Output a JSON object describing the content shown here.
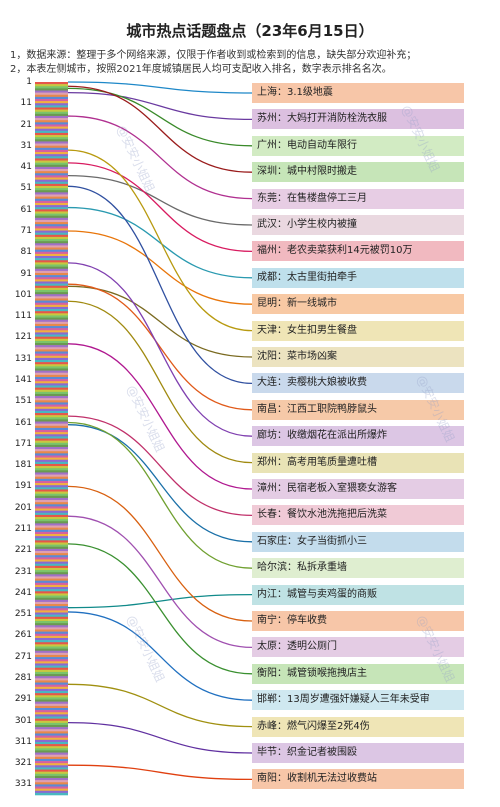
{
  "title": "城市热点话题盘点（23年6月15日）",
  "notes": [
    "1，数据来源：整理于多个网络来源，仅限于作者收到或检索到的信息，缺失部分欢迎补充；",
    "2，本表左侧城市，按照2021年度城镇居民人均可支配收入排名，数字表示排名名次。"
  ],
  "watermark": "@安安小姐姐",
  "ranks": [
    "1",
    "11",
    "21",
    "31",
    "41",
    "51",
    "61",
    "71",
    "81",
    "91",
    "101",
    "111",
    "121",
    "131",
    "141",
    "151",
    "161",
    "171",
    "181",
    "191",
    "201",
    "211",
    "221",
    "231",
    "241",
    "251",
    "261",
    "271",
    "281",
    "291",
    "301",
    "311",
    "321",
    "331"
  ],
  "chart_data": {
    "type": "table",
    "topics": [
      {
        "label": "上海：3.1级地震",
        "rank": 1,
        "color": "#f7c6a8",
        "line": "#1e88c8"
      },
      {
        "label": "苏州：大妈打开消防栓洗衣服",
        "rank": 6,
        "color": "#dcc0e0",
        "line": "#6a3aa0"
      },
      {
        "label": "广州：电动自动车限行",
        "rank": 4,
        "color": "#d2ebc3",
        "line": "#3a8a2a"
      },
      {
        "label": "深圳：城中村限时搬走",
        "rank": 3,
        "color": "#c6e5b8",
        "line": "#9a1c1c"
      },
      {
        "label": "东莞：在售楼盘停工三月",
        "rank": 17,
        "color": "#e7cde4",
        "line": "#b03090"
      },
      {
        "label": "武汉：小学生校内被撞",
        "rank": 45,
        "color": "#ead8e0",
        "line": "#6a6a6a"
      },
      {
        "label": "福州：老农卖菜获利14元被罚10万",
        "rank": 39,
        "color": "#f1b9c0",
        "line": "#d81b60"
      },
      {
        "label": "成都：太古里街拍牵手",
        "rank": 60,
        "color": "#bfe0ec",
        "line": "#2a9ab0"
      },
      {
        "label": "昆明：新一线城市",
        "rank": 71,
        "color": "#f8c9a4",
        "line": "#e8750a"
      },
      {
        "label": "天津：女生扣男生餐盘",
        "rank": 33,
        "color": "#efe5b6",
        "line": "#b89a10"
      },
      {
        "label": "沈阳：菜市场凶案",
        "rank": 97,
        "color": "#ece3c0",
        "line": "#7a6a20"
      },
      {
        "label": "大连：卖樱桃大娘被收费",
        "rank": 50,
        "color": "#c9d9ec",
        "line": "#3050a0"
      },
      {
        "label": "南昌：江西工职院鸭脖鼠头",
        "rank": 96,
        "color": "#f6c9a8",
        "line": "#e05a1a"
      },
      {
        "label": "廊坊：收缴烟花在派出所爆炸",
        "rank": 86,
        "color": "#dcc6e4",
        "line": "#8040b0"
      },
      {
        "label": "郑州：高考用笔质量遭吐槽",
        "rank": 104,
        "color": "#e9e3b6",
        "line": "#a08a10"
      },
      {
        "label": "漳州：民宿老板入室猥亵女游客",
        "rank": 124,
        "color": "#e4cce4",
        "line": "#b01890"
      },
      {
        "label": "长春：餐饮水池洗拖把后洗菜",
        "rank": 158,
        "color": "#f0cad6",
        "line": "#c0306a"
      },
      {
        "label": "石家庄：女子当街抓小三",
        "rank": 162,
        "color": "#c3dcec",
        "line": "#1a70a8"
      },
      {
        "label": "哈尔滨：私拆承重墙",
        "rank": 161,
        "color": "#dfeed0",
        "line": "#70a030"
      },
      {
        "label": "内江：城管与卖鸡蛋的商贩",
        "rank": 248,
        "color": "#bfe2e4",
        "line": "#108a8a"
      },
      {
        "label": "南宁：停车收费",
        "rank": 191,
        "color": "#f7c6a8",
        "line": "#d86010"
      },
      {
        "label": "太原：透明公厕门",
        "rank": 205,
        "color": "#e4cce4",
        "line": "#a050b0"
      },
      {
        "label": "衡阳：城管锁喉拖拽店主",
        "rank": 218,
        "color": "#c6e5b8",
        "line": "#3a9030"
      },
      {
        "label": "邯郸：13周岁遭强奸嫌疑人三年未受审",
        "rank": 250,
        "color": "#cfe8f0",
        "line": "#2070c0"
      },
      {
        "label": "赤峰：燃气闪爆至2死4伤",
        "rank": 284,
        "color": "#efe5b6",
        "line": "#a09010"
      },
      {
        "label": "毕节：织金记者被围殴",
        "rank": 302,
        "color": "#dcc6e4",
        "line": "#6030a0"
      },
      {
        "label": "南阳：收割机无法过收费站",
        "rank": 322,
        "color": "#f7c6a8",
        "line": "#e04010"
      }
    ]
  }
}
